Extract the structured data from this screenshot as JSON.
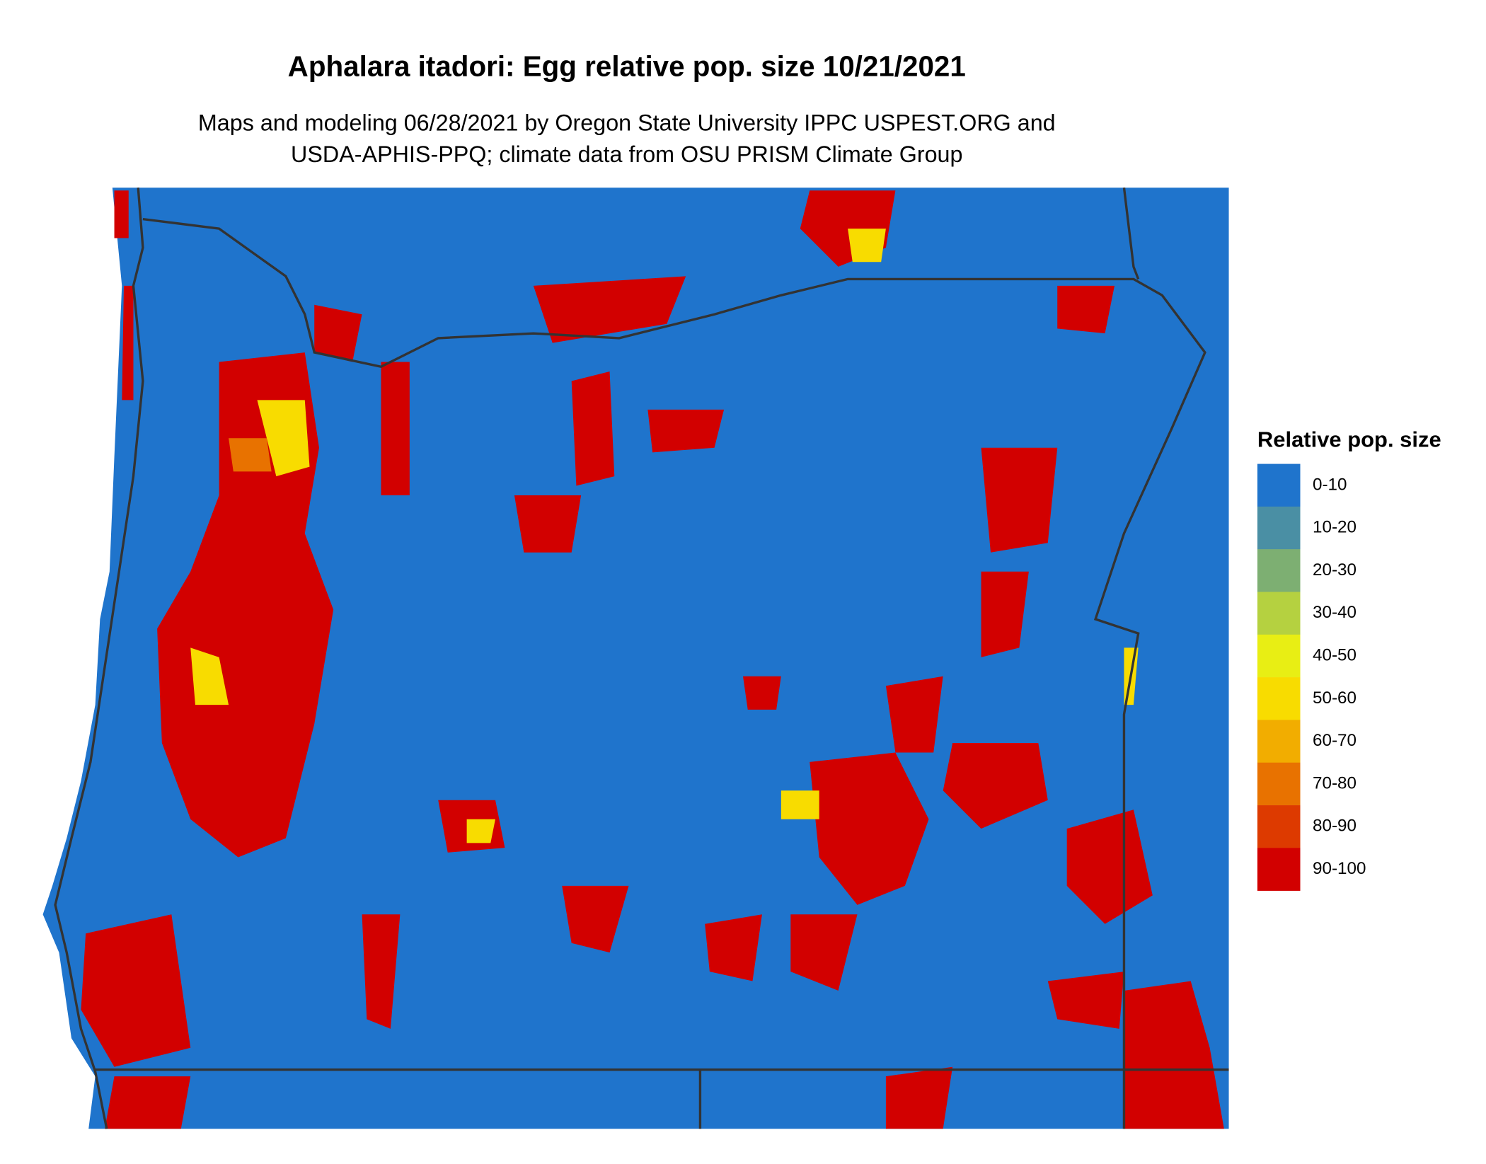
{
  "title": "Aphalara itadori: Egg relative pop. size 10/21/2021",
  "subtitle": [
    "Maps and modeling 06/28/2021 by Oregon State University IPPC USPEST.ORG and",
    "USDA-APHIS-PPQ; climate data from OSU PRISM Climate Group"
  ],
  "legend": {
    "title": "Relative pop. size",
    "items": [
      {
        "label": "0-10",
        "color": "#1f74cc"
      },
      {
        "label": "10-20",
        "color": "#4a8fa4"
      },
      {
        "label": "20-30",
        "color": "#7daf72"
      },
      {
        "label": "30-40",
        "color": "#b5d140"
      },
      {
        "label": "40-50",
        "color": "#e8ee14"
      },
      {
        "label": "50-60",
        "color": "#f8dc00"
      },
      {
        "label": "60-70",
        "color": "#f2ad00"
      },
      {
        "label": "70-80",
        "color": "#e87200"
      },
      {
        "label": "80-90",
        "color": "#dd3a00"
      },
      {
        "label": "90-100",
        "color": "#d20000"
      }
    ]
  }
}
